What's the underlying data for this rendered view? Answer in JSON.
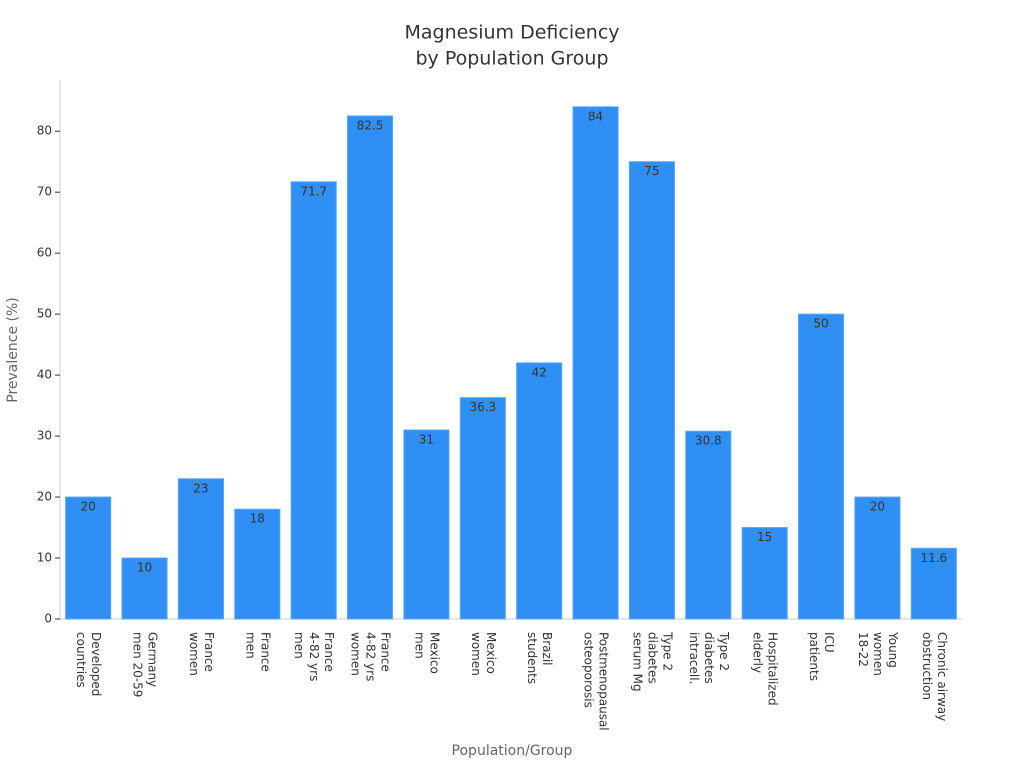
{
  "chart_data": {
    "type": "bar",
    "title": [
      "Magnesium Deficiency",
      "by Population Group"
    ],
    "x_label": "Population/Group",
    "y_label": "Prevalence (%)",
    "categories": [
      [
        "Developed",
        "countries"
      ],
      [
        "Germany",
        "men 20-59"
      ],
      [
        "France",
        "women"
      ],
      [
        "France",
        "men"
      ],
      [
        "France",
        "4-82 yrs",
        "men"
      ],
      [
        "France",
        "4-82 yrs",
        "women"
      ],
      [
        "Mexico",
        "men"
      ],
      [
        "Mexico",
        "women"
      ],
      [
        "Brazil",
        "students"
      ],
      [
        "Postmenopausal",
        "osteoporosis"
      ],
      [
        "Type 2",
        "diabetes",
        "serum Mg"
      ],
      [
        "Type 2",
        "diabetes",
        "intracell."
      ],
      [
        "Hospitalized",
        "elderly"
      ],
      [
        "ICU",
        "patients"
      ],
      [
        "Young",
        "women",
        "18-22"
      ],
      [
        "Chronic airway",
        "obstruction"
      ]
    ],
    "values": [
      20,
      10,
      23,
      18,
      71.7,
      82.5,
      31,
      36.3,
      42,
      84,
      75,
      30.8,
      15,
      50,
      20,
      11.6
    ],
    "color": "#2f8ff5",
    "ylim": [
      0,
      88.4
    ],
    "yticks": [
      0,
      10,
      20,
      30,
      40,
      50,
      60,
      70,
      80
    ],
    "grid": false
  }
}
